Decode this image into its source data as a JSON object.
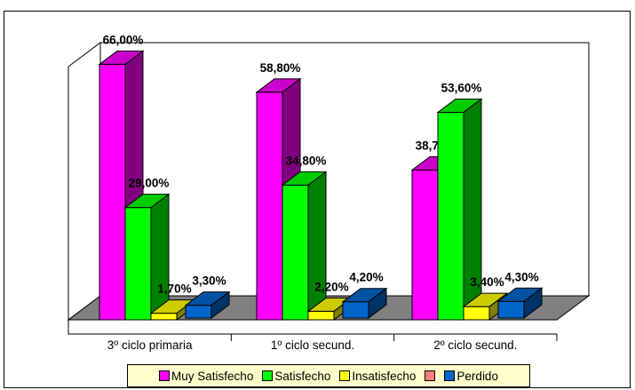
{
  "chart_data": {
    "type": "bar",
    "style": "3d-clustered-column",
    "categories": [
      "3º ciclo primaria",
      "1º ciclo secund.",
      "2º ciclo secund."
    ],
    "series": [
      {
        "name": "Muy Satisfecho",
        "color": "#ff00ff",
        "values": [
          66.0,
          58.8,
          38.7
        ],
        "labels": [
          "66,00%",
          "58,80%",
          "38,70%"
        ]
      },
      {
        "name": "Satisfecho",
        "color": "#00ff00",
        "values": [
          29.0,
          34.8,
          53.6
        ],
        "labels": [
          "29,00%",
          "34,80%",
          "53,60%"
        ]
      },
      {
        "name": "Insatisfecho",
        "color": "#ffff00",
        "values": [
          1.7,
          2.2,
          3.4
        ],
        "labels": [
          "1,70%",
          "2,20%",
          "3,40%"
        ]
      },
      {
        "name": "Perdido",
        "color": "#0066cc",
        "values": [
          3.3,
          4.2,
          4.3
        ],
        "labels": [
          "3,30%",
          "4,20%",
          "4,30%"
        ]
      }
    ],
    "legend_swatch_colors": [
      "#ff00ff",
      "#00ff00",
      "#ffff00",
      "#ff8080",
      "#0066cc"
    ],
    "ylim": [
      0,
      70
    ],
    "grid": false,
    "legend": "bottom"
  }
}
